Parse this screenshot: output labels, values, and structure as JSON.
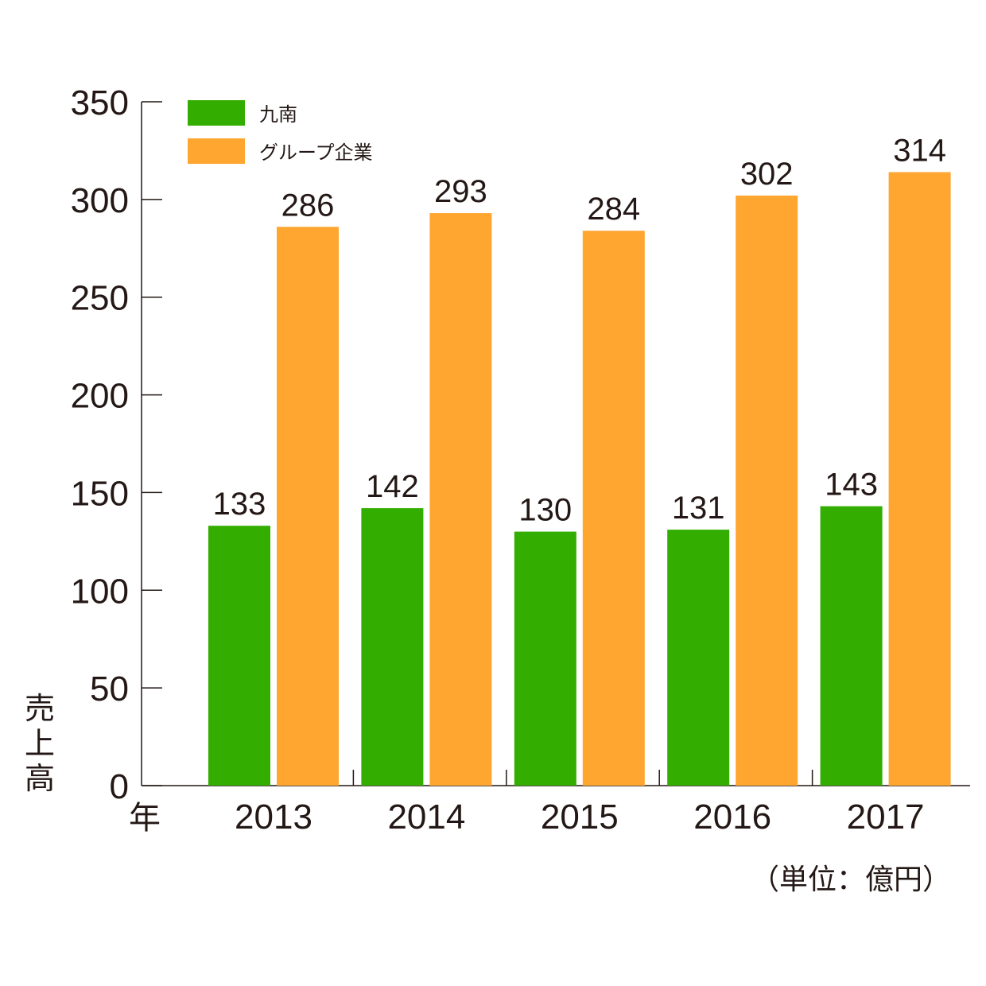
{
  "chart_data": {
    "type": "bar",
    "categories": [
      "2013",
      "2014",
      "2015",
      "2016",
      "2017"
    ],
    "series": [
      {
        "name": "九南",
        "color": "#33ad00",
        "values": [
          133,
          142,
          130,
          131,
          143
        ]
      },
      {
        "name": "グループ企業",
        "color": "#ffa630",
        "values": [
          286,
          293,
          284,
          302,
          314
        ]
      }
    ],
    "ylabel": "売上高",
    "xlabel": "年",
    "unit_note": "（単位：億円）",
    "ylim": [
      0,
      350
    ],
    "yticks": [
      0,
      50,
      100,
      150,
      200,
      250,
      300,
      350
    ],
    "legend_position": "top-left",
    "grid": false
  }
}
